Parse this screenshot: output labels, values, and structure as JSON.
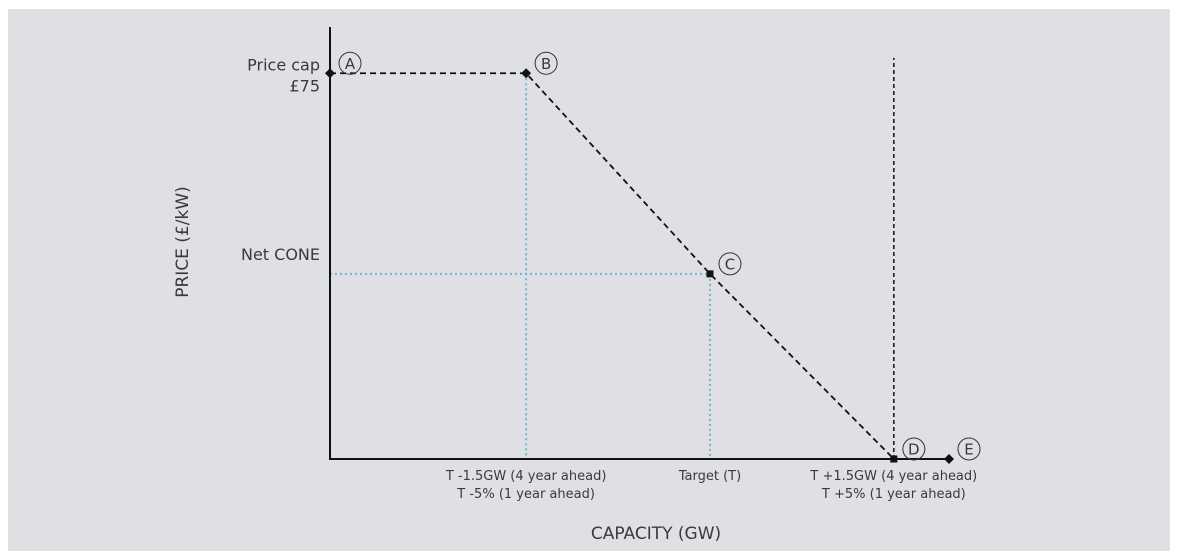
{
  "chart_data": {
    "type": "line",
    "title": "",
    "xlabel": "CAPACITY (GW)",
    "ylabel": "PRICE (£/kW)",
    "y_tick_labels": [
      {
        "lines": [
          "Price cap",
          "£75"
        ],
        "y": 75
      },
      {
        "lines": [
          "Net CONE"
        ],
        "y": 36
      }
    ],
    "x_tick_labels": [
      {
        "lines": [
          "T -1.5GW (4 year ahead)",
          "T -5% (1 year ahead)"
        ],
        "x": -1.5
      },
      {
        "lines": [
          "Target (T)"
        ],
        "x": 0
      },
      {
        "lines": [
          "T +1.5GW (4 year ahead)",
          "T +5% (1 year ahead)"
        ],
        "x": 1.5
      }
    ],
    "xlim": [
      -3.1,
      1.95
    ],
    "ylim": [
      0,
      84
    ],
    "series": [
      {
        "style": "dashed",
        "points": [
          {
            "label": "A",
            "x": -3.1,
            "y": 75,
            "marker": "diamond"
          },
          {
            "label": "B",
            "x": -1.5,
            "y": 75,
            "marker": "diamond"
          },
          {
            "label": "C",
            "x": 0,
            "y": 36,
            "marker": "square"
          },
          {
            "label": "D",
            "x": 1.5,
            "y": 0,
            "marker": "square"
          },
          {
            "label": "E",
            "x": 1.95,
            "y": 0,
            "marker": "diamond"
          }
        ]
      }
    ],
    "reference_lines": [
      {
        "type": "vertical",
        "x": 1.5,
        "y_from": 0,
        "y_to": 78,
        "style": "dashed",
        "color": "#111111"
      }
    ],
    "guide_lines_color": "#6cb6d6",
    "line_color": "#111111",
    "grid": false
  }
}
